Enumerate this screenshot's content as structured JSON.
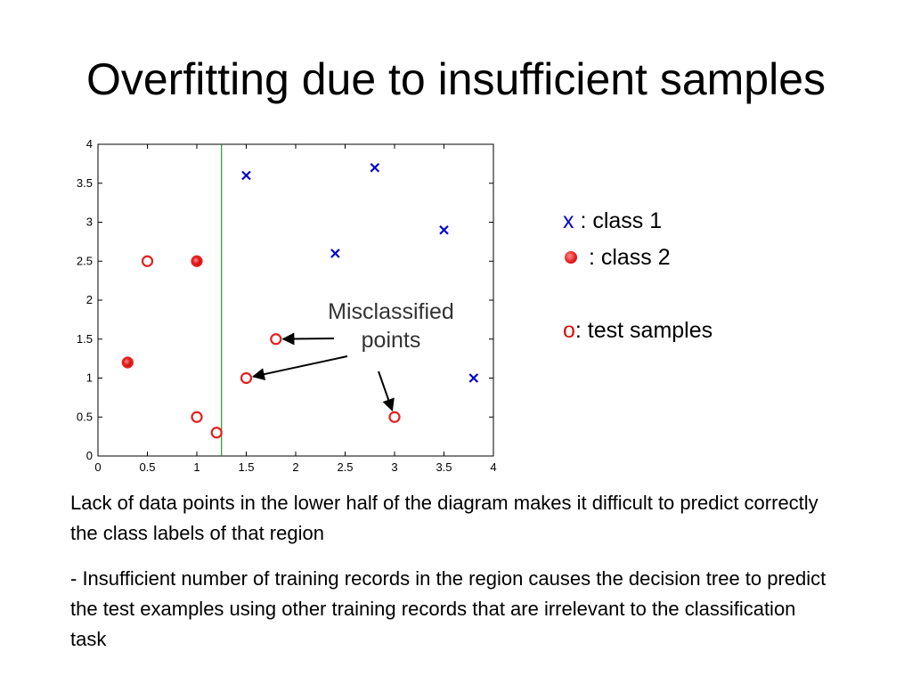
{
  "slide": {
    "title": "Overfitting due to insufficient samples",
    "paragraph_1": "Lack of data points in the lower half of the diagram makes it difficult to predict correctly the class labels of that region",
    "paragraph_2": "- Insufficient number of training records in the region causes the decision tree to predict the test examples using other training records that are irrelevant to the classification task"
  },
  "legend": {
    "class1_symbol": "x",
    "class1_label": " : class 1",
    "class2_label": " : class 2",
    "test_symbol": "o",
    "test_label": ": test samples"
  },
  "chart_data": {
    "type": "scatter",
    "xlim": [
      0,
      4
    ],
    "ylim": [
      0,
      4
    ],
    "xticks": [
      0,
      0.5,
      1,
      1.5,
      2,
      2.5,
      3,
      3.5,
      4
    ],
    "yticks": [
      0,
      0.5,
      1,
      1.5,
      2,
      2.5,
      3,
      3.5,
      4
    ],
    "xtick_labels": [
      "0",
      "0.5",
      "1",
      "1.5",
      "2",
      "2.5",
      "3",
      "3.5",
      "4"
    ],
    "ytick_labels": [
      "0",
      "0.5",
      "1",
      "1.5",
      "2",
      "2.5",
      "3",
      "3.5",
      "4"
    ],
    "grid": false,
    "decision_boundary_x": 1.25,
    "class1_points": [
      [
        1.5,
        3.6
      ],
      [
        2.8,
        3.7
      ],
      [
        2.4,
        2.6
      ],
      [
        3.5,
        2.9
      ],
      [
        3.8,
        1.0
      ]
    ],
    "class2_points": [
      [
        1.0,
        2.5
      ],
      [
        0.3,
        1.2
      ]
    ],
    "test_points": [
      [
        0.5,
        2.5
      ],
      [
        1.0,
        2.5
      ],
      [
        0.3,
        1.2
      ],
      [
        1.8,
        1.5
      ],
      [
        1.5,
        1.0
      ],
      [
        1.0,
        0.5
      ],
      [
        1.2,
        0.3
      ],
      [
        3.0,
        0.5
      ]
    ],
    "annotation": {
      "lines": [
        "Misclassified",
        "points"
      ],
      "arrow_targets": [
        [
          1.8,
          1.5
        ],
        [
          1.5,
          1.0
        ],
        [
          3.0,
          0.5
        ]
      ]
    },
    "colors": {
      "class1": "#0000cc",
      "class2": "#e32020",
      "test": "#e32020",
      "boundary": "#008000"
    }
  }
}
